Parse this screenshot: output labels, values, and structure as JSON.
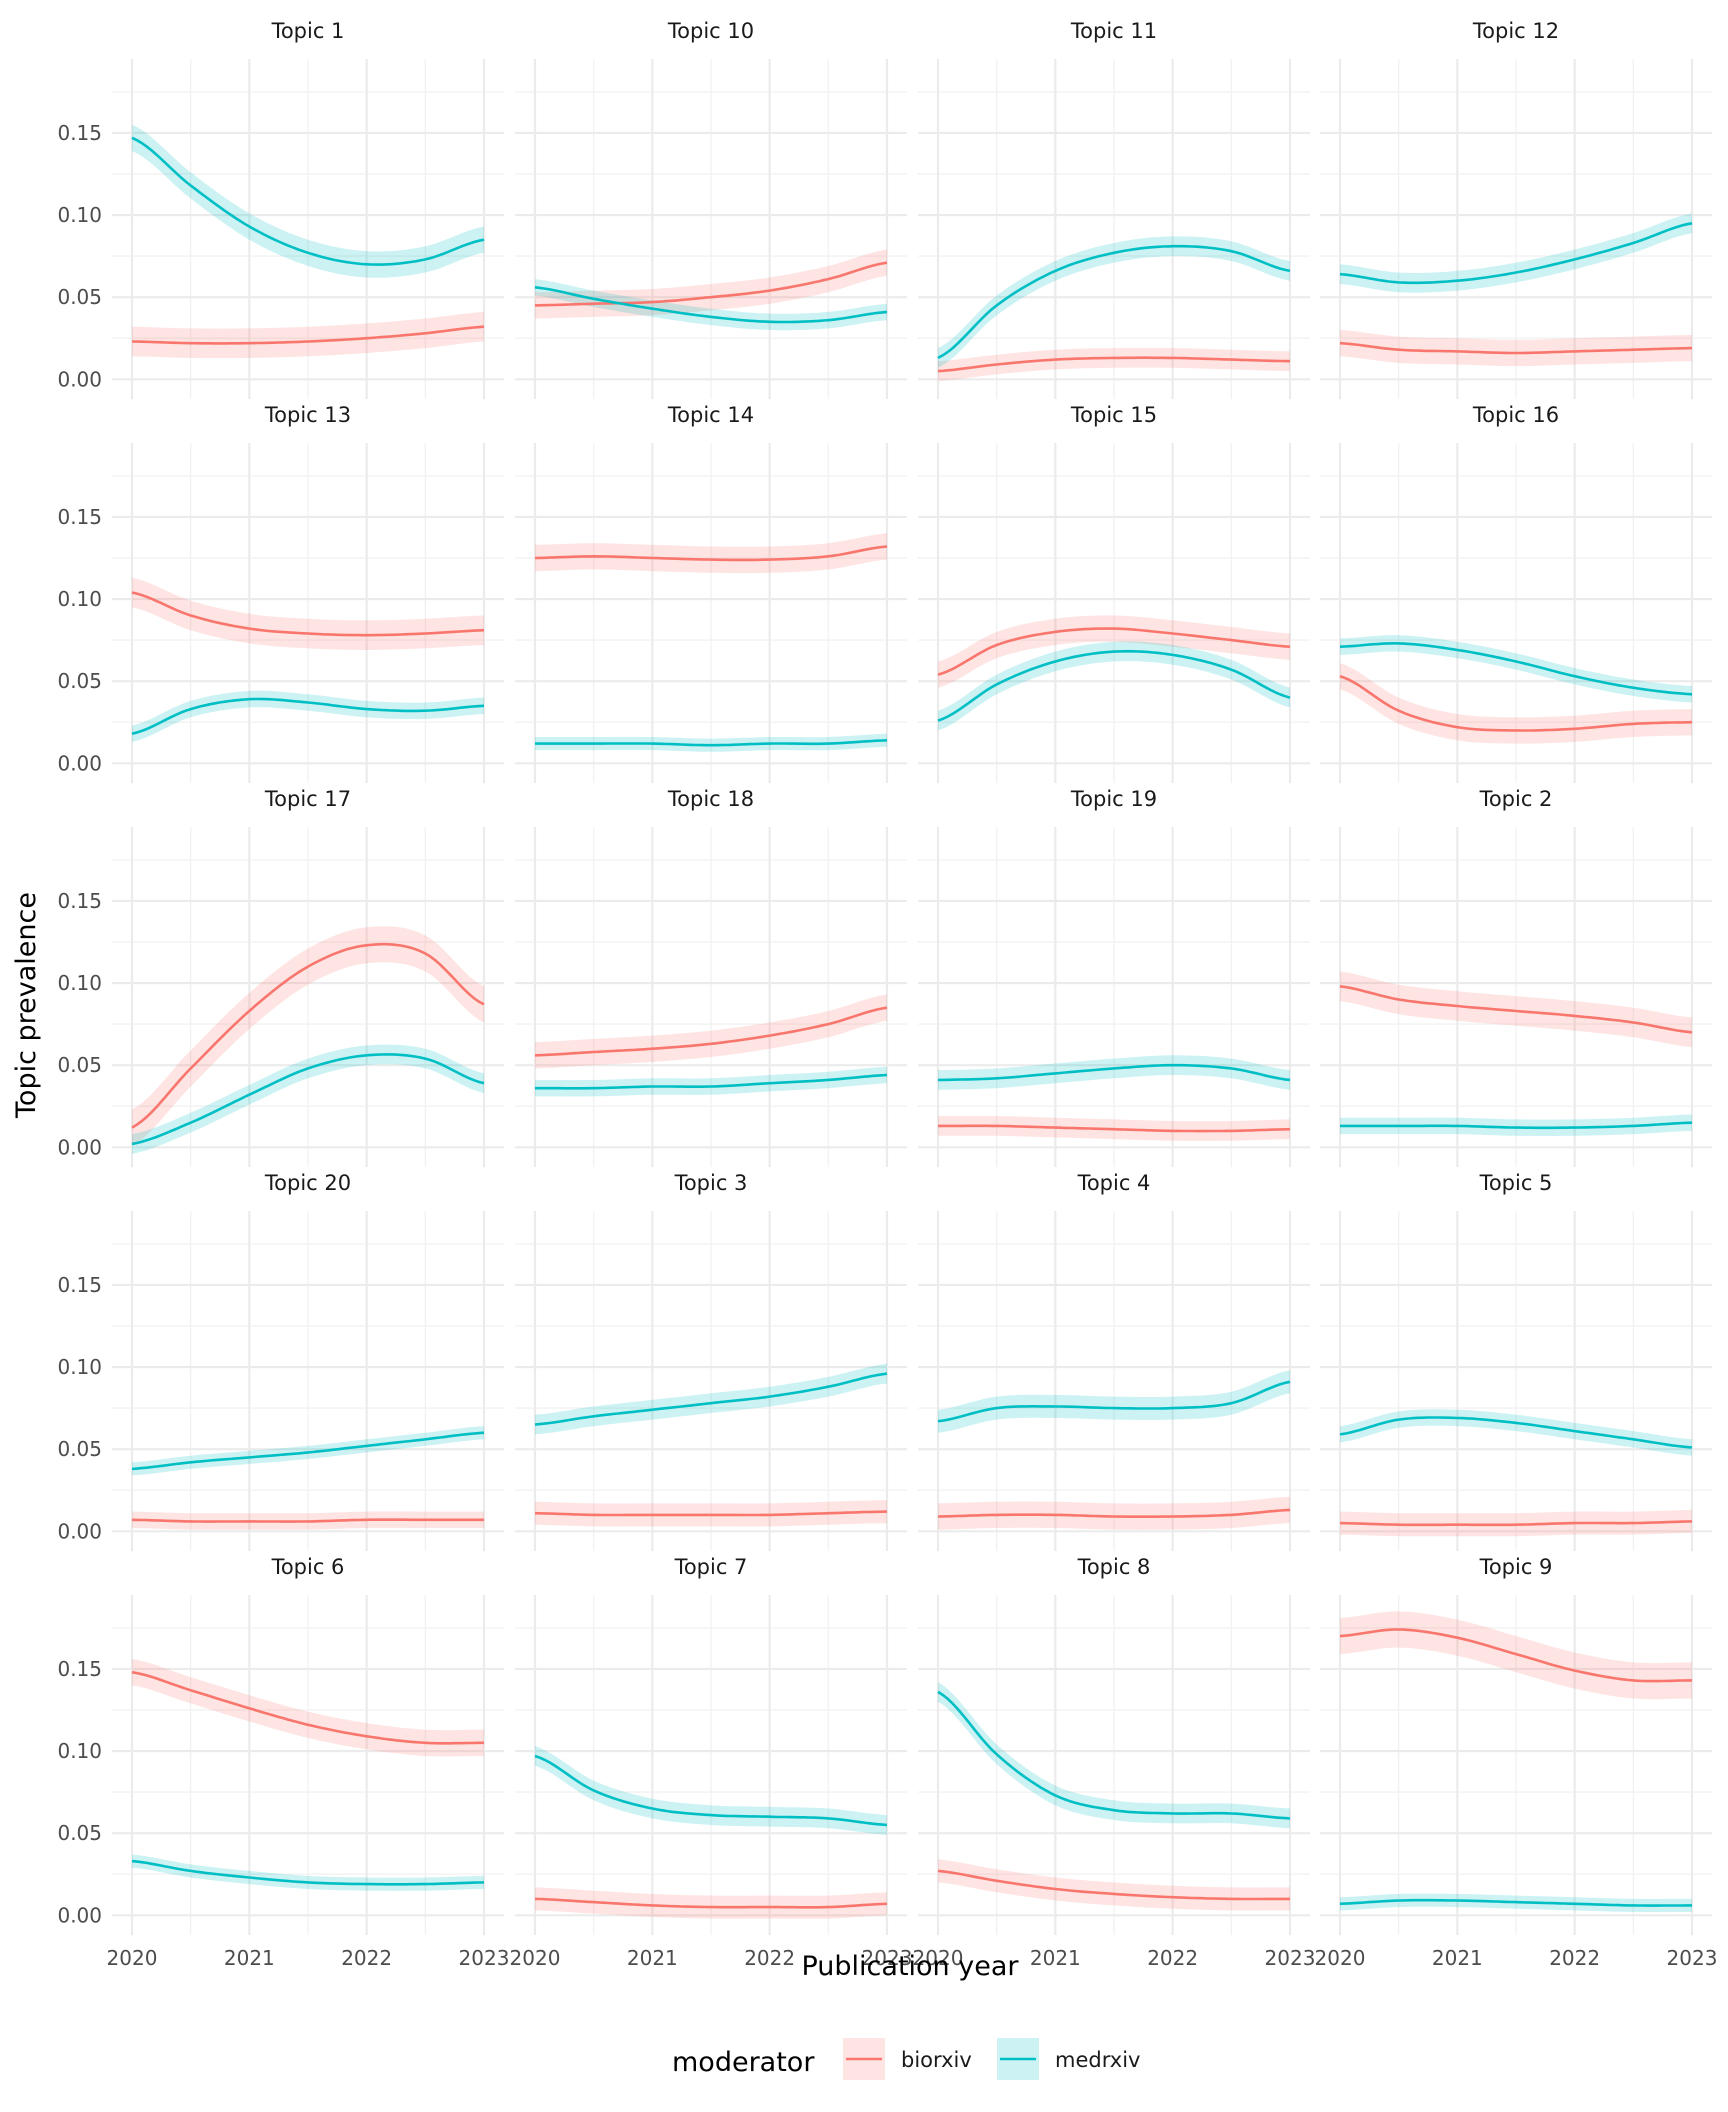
{
  "chart_data": {
    "type": "line",
    "xlabel": "Publication year",
    "ylabel": "Topic prevalence",
    "xlim": [
      2020,
      2023
    ],
    "ylim": [
      -0.012,
      0.195
    ],
    "x_ticks": [
      2020,
      2021,
      2022,
      2023
    ],
    "y_ticks": [
      0.0,
      0.05,
      0.1,
      0.15
    ],
    "y_tick_labels": [
      "0.00",
      "0.05",
      "0.10",
      "0.15"
    ],
    "grid": true,
    "legend": {
      "title": "moderator",
      "position": "bottom",
      "entries": [
        {
          "name": "biorxiv",
          "color": "#F8766D"
        },
        {
          "name": "medrxiv",
          "color": "#00BFC4"
        }
      ]
    },
    "x": [
      2020,
      2020.5,
      2021,
      2021.5,
      2022,
      2022.5,
      2023
    ],
    "panels": [
      {
        "title": "Topic 1",
        "series": [
          {
            "name": "biorxiv",
            "values": [
              0.023,
              0.022,
              0.022,
              0.023,
              0.025,
              0.028,
              0.032
            ],
            "band": 0.009
          },
          {
            "name": "medrxiv",
            "values": [
              0.147,
              0.118,
              0.093,
              0.077,
              0.07,
              0.073,
              0.085
            ],
            "band": 0.008
          }
        ]
      },
      {
        "title": "Topic 10",
        "series": [
          {
            "name": "biorxiv",
            "values": [
              0.045,
              0.046,
              0.047,
              0.05,
              0.054,
              0.061,
              0.071
            ],
            "band": 0.008
          },
          {
            "name": "medrxiv",
            "values": [
              0.056,
              0.049,
              0.043,
              0.038,
              0.035,
              0.036,
              0.041
            ],
            "band": 0.005
          }
        ]
      },
      {
        "title": "Topic 11",
        "series": [
          {
            "name": "biorxiv",
            "values": [
              0.005,
              0.009,
              0.012,
              0.013,
              0.013,
              0.012,
              0.011
            ],
            "band": 0.006
          },
          {
            "name": "medrxiv",
            "values": [
              0.013,
              0.045,
              0.066,
              0.077,
              0.081,
              0.078,
              0.066
            ],
            "band": 0.006
          }
        ]
      },
      {
        "title": "Topic 12",
        "series": [
          {
            "name": "biorxiv",
            "values": [
              0.022,
              0.018,
              0.017,
              0.016,
              0.017,
              0.018,
              0.019
            ],
            "band": 0.008
          },
          {
            "name": "medrxiv",
            "values": [
              0.064,
              0.059,
              0.06,
              0.065,
              0.073,
              0.083,
              0.095
            ],
            "band": 0.006
          }
        ]
      },
      {
        "title": "Topic 13",
        "series": [
          {
            "name": "biorxiv",
            "values": [
              0.104,
              0.09,
              0.082,
              0.079,
              0.078,
              0.079,
              0.081
            ],
            "band": 0.009
          },
          {
            "name": "medrxiv",
            "values": [
              0.018,
              0.033,
              0.039,
              0.037,
              0.033,
              0.032,
              0.035
            ],
            "band": 0.005
          }
        ]
      },
      {
        "title": "Topic 14",
        "series": [
          {
            "name": "biorxiv",
            "values": [
              0.125,
              0.126,
              0.125,
              0.124,
              0.124,
              0.126,
              0.132
            ],
            "band": 0.008
          },
          {
            "name": "medrxiv",
            "values": [
              0.012,
              0.012,
              0.012,
              0.011,
              0.012,
              0.012,
              0.014
            ],
            "band": 0.004
          }
        ]
      },
      {
        "title": "Topic 15",
        "series": [
          {
            "name": "biorxiv",
            "values": [
              0.054,
              0.072,
              0.08,
              0.082,
              0.079,
              0.075,
              0.071
            ],
            "band": 0.008
          },
          {
            "name": "medrxiv",
            "values": [
              0.026,
              0.048,
              0.062,
              0.068,
              0.066,
              0.057,
              0.04
            ],
            "band": 0.006
          }
        ]
      },
      {
        "title": "Topic 16",
        "series": [
          {
            "name": "biorxiv",
            "values": [
              0.053,
              0.032,
              0.022,
              0.02,
              0.021,
              0.024,
              0.025
            ],
            "band": 0.008
          },
          {
            "name": "medrxiv",
            "values": [
              0.071,
              0.073,
              0.069,
              0.062,
              0.053,
              0.046,
              0.042
            ],
            "band": 0.005
          }
        ]
      },
      {
        "title": "Topic 17",
        "series": [
          {
            "name": "biorxiv",
            "values": [
              0.012,
              0.048,
              0.083,
              0.11,
              0.123,
              0.118,
              0.087
            ],
            "band": 0.011
          },
          {
            "name": "medrxiv",
            "values": [
              0.002,
              0.015,
              0.032,
              0.048,
              0.056,
              0.054,
              0.039
            ],
            "band": 0.006
          }
        ]
      },
      {
        "title": "Topic 18",
        "series": [
          {
            "name": "biorxiv",
            "values": [
              0.056,
              0.058,
              0.06,
              0.063,
              0.068,
              0.075,
              0.085
            ],
            "band": 0.008
          },
          {
            "name": "medrxiv",
            "values": [
              0.036,
              0.036,
              0.037,
              0.037,
              0.039,
              0.041,
              0.044
            ],
            "band": 0.005
          }
        ]
      },
      {
        "title": "Topic 19",
        "series": [
          {
            "name": "biorxiv",
            "values": [
              0.013,
              0.013,
              0.012,
              0.011,
              0.01,
              0.01,
              0.011
            ],
            "band": 0.006
          },
          {
            "name": "medrxiv",
            "values": [
              0.041,
              0.042,
              0.045,
              0.048,
              0.05,
              0.048,
              0.041
            ],
            "band": 0.006
          }
        ]
      },
      {
        "title": "Topic 2",
        "series": [
          {
            "name": "biorxiv",
            "values": [
              0.098,
              0.09,
              0.086,
              0.083,
              0.08,
              0.076,
              0.07
            ],
            "band": 0.009
          },
          {
            "name": "medrxiv",
            "values": [
              0.013,
              0.013,
              0.013,
              0.012,
              0.012,
              0.013,
              0.015
            ],
            "band": 0.005
          }
        ]
      },
      {
        "title": "Topic 20",
        "series": [
          {
            "name": "biorxiv",
            "values": [
              0.007,
              0.006,
              0.006,
              0.006,
              0.007,
              0.007,
              0.007
            ],
            "band": 0.005
          },
          {
            "name": "medrxiv",
            "values": [
              0.038,
              0.042,
              0.045,
              0.048,
              0.052,
              0.056,
              0.06
            ],
            "band": 0.004
          }
        ]
      },
      {
        "title": "Topic 3",
        "series": [
          {
            "name": "biorxiv",
            "values": [
              0.011,
              0.01,
              0.01,
              0.01,
              0.01,
              0.011,
              0.012
            ],
            "band": 0.007
          },
          {
            "name": "medrxiv",
            "values": [
              0.065,
              0.07,
              0.074,
              0.078,
              0.082,
              0.088,
              0.096
            ],
            "band": 0.006
          }
        ]
      },
      {
        "title": "Topic 4",
        "series": [
          {
            "name": "biorxiv",
            "values": [
              0.009,
              0.01,
              0.01,
              0.009,
              0.009,
              0.01,
              0.013
            ],
            "band": 0.008
          },
          {
            "name": "medrxiv",
            "values": [
              0.067,
              0.075,
              0.076,
              0.075,
              0.075,
              0.078,
              0.091
            ],
            "band": 0.007
          }
        ]
      },
      {
        "title": "Topic 5",
        "series": [
          {
            "name": "biorxiv",
            "values": [
              0.005,
              0.004,
              0.004,
              0.004,
              0.005,
              0.005,
              0.006
            ],
            "band": 0.007
          },
          {
            "name": "medrxiv",
            "values": [
              0.059,
              0.068,
              0.069,
              0.066,
              0.061,
              0.056,
              0.051
            ],
            "band": 0.005
          }
        ]
      },
      {
        "title": "Topic 6",
        "series": [
          {
            "name": "biorxiv",
            "values": [
              0.148,
              0.137,
              0.126,
              0.116,
              0.109,
              0.105,
              0.105
            ],
            "band": 0.008
          },
          {
            "name": "medrxiv",
            "values": [
              0.033,
              0.027,
              0.023,
              0.02,
              0.019,
              0.019,
              0.02
            ],
            "band": 0.004
          }
        ]
      },
      {
        "title": "Topic 7",
        "series": [
          {
            "name": "biorxiv",
            "values": [
              0.01,
              0.008,
              0.006,
              0.005,
              0.005,
              0.005,
              0.007
            ],
            "band": 0.007
          },
          {
            "name": "medrxiv",
            "values": [
              0.097,
              0.076,
              0.065,
              0.061,
              0.06,
              0.059,
              0.055
            ],
            "band": 0.006
          }
        ]
      },
      {
        "title": "Topic 8",
        "series": [
          {
            "name": "biorxiv",
            "values": [
              0.027,
              0.021,
              0.016,
              0.013,
              0.011,
              0.01,
              0.01
            ],
            "band": 0.007
          },
          {
            "name": "medrxiv",
            "values": [
              0.136,
              0.098,
              0.073,
              0.064,
              0.062,
              0.062,
              0.059
            ],
            "band": 0.006
          }
        ]
      },
      {
        "title": "Topic 9",
        "series": [
          {
            "name": "biorxiv",
            "values": [
              0.17,
              0.174,
              0.169,
              0.159,
              0.149,
              0.143,
              0.143
            ],
            "band": 0.011
          },
          {
            "name": "medrxiv",
            "values": [
              0.007,
              0.009,
              0.009,
              0.008,
              0.007,
              0.006,
              0.006
            ],
            "band": 0.004
          }
        ]
      }
    ]
  }
}
